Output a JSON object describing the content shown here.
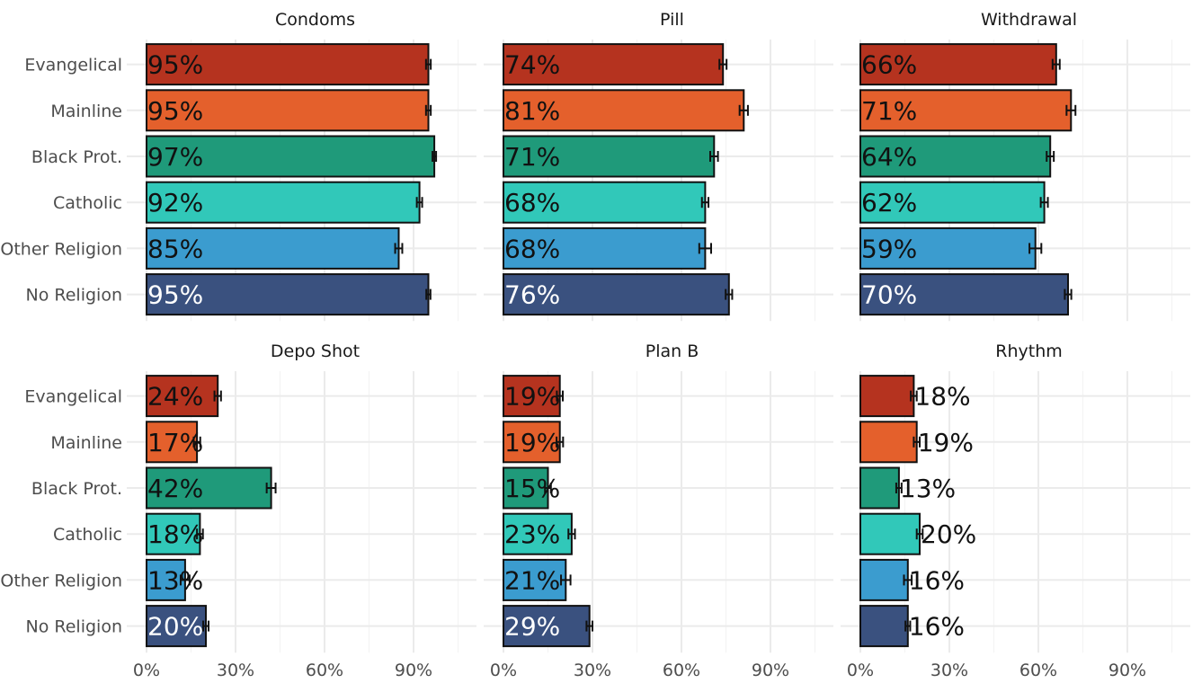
{
  "colors": {
    "Evangelical": "#b5331f",
    "Mainline": "#e4602c",
    "Black Prot.": "#1f9a7a",
    "Catholic": "#31c8b9",
    "Other Religion": "#3b9ccf",
    "No Religion": "#3a517f"
  },
  "chart_data": {
    "type": "bar",
    "orientation": "horizontal",
    "categories": [
      "Evangelical",
      "Mainline",
      "Black Prot.",
      "Catholic",
      "Other Religion",
      "No Religion"
    ],
    "x_ticks": [
      "0%",
      "30%",
      "60%",
      "90%"
    ],
    "xlim": [
      0,
      1.1
    ],
    "grid": true,
    "panels": [
      {
        "title": "Condoms",
        "values": [
          0.95,
          0.95,
          0.97,
          0.92,
          0.85,
          0.95
        ],
        "labels": [
          "95%",
          "95%",
          "97%",
          "92%",
          "85%",
          "95%"
        ],
        "err": [
          0.008,
          0.008,
          0.006,
          0.009,
          0.012,
          0.007
        ]
      },
      {
        "title": "Pill",
        "values": [
          0.74,
          0.81,
          0.71,
          0.68,
          0.68,
          0.76
        ],
        "labels": [
          "74%",
          "81%",
          "71%",
          "68%",
          "68%",
          "76%"
        ],
        "err": [
          0.012,
          0.014,
          0.013,
          0.011,
          0.02,
          0.011
        ]
      },
      {
        "title": "Withdrawal",
        "values": [
          0.66,
          0.71,
          0.64,
          0.62,
          0.59,
          0.7
        ],
        "labels": [
          "66%",
          "71%",
          "64%",
          "62%",
          "59%",
          "70%"
        ],
        "err": [
          0.012,
          0.015,
          0.012,
          0.012,
          0.02,
          0.011
        ]
      },
      {
        "title": "Depo Shot",
        "values": [
          0.24,
          0.17,
          0.42,
          0.18,
          0.13,
          0.2
        ],
        "labels": [
          "24%",
          "17%",
          "42%",
          "18%",
          "13%",
          "20%"
        ],
        "err": [
          0.011,
          0.011,
          0.015,
          0.01,
          0.015,
          0.009
        ]
      },
      {
        "title": "Plan B",
        "values": [
          0.19,
          0.19,
          0.15,
          0.23,
          0.21,
          0.29
        ],
        "labels": [
          "19%",
          "19%",
          "15%",
          "23%",
          "21%",
          "29%"
        ],
        "err": [
          0.01,
          0.011,
          0.01,
          0.011,
          0.016,
          0.01
        ]
      },
      {
        "title": "Rhythm",
        "values": [
          0.18,
          0.19,
          0.13,
          0.2,
          0.16,
          0.16
        ],
        "labels": [
          "18%",
          "19%",
          "13%",
          "20%",
          "16%",
          "16%"
        ],
        "err": [
          0.01,
          0.01,
          0.009,
          0.01,
          0.013,
          0.008
        ]
      }
    ]
  }
}
